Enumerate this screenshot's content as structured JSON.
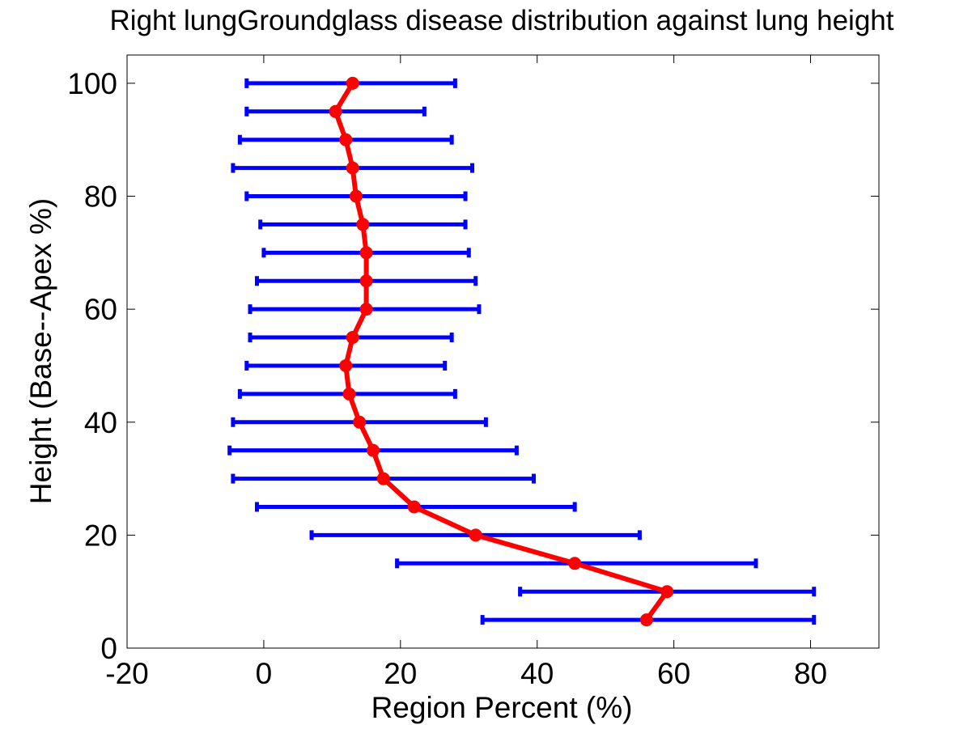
{
  "chart_data": {
    "type": "line",
    "title": "Right lungGroundglass disease distribution against lung height",
    "xlabel": "Region Percent (%)",
    "ylabel": "Height (Base--Apex %)",
    "xlim": [
      -20,
      90
    ],
    "ylim": [
      0,
      105
    ],
    "xticks": [
      -20,
      0,
      20,
      40,
      60,
      80
    ],
    "yticks": [
      0,
      20,
      40,
      60,
      80,
      100
    ],
    "xtick_labels": [
      "-20",
      "0",
      "20",
      "40",
      "60",
      "80"
    ],
    "ytick_labels": [
      "0",
      "20",
      "40",
      "60",
      "80",
      "100"
    ],
    "grid": false,
    "legend": "none",
    "orientation": "horizontal error bars",
    "colors": {
      "line": "#ff0000",
      "marker": "#ff0000",
      "error_bar": "#0000ff",
      "axes": "#000000"
    },
    "series": [
      {
        "y": [
          5,
          10,
          15,
          20,
          25,
          30,
          35,
          40,
          45,
          50,
          55,
          60,
          65,
          70,
          75,
          80,
          85,
          90,
          95,
          100
        ],
        "x": [
          56.0,
          59.0,
          45.5,
          31.0,
          22.0,
          17.5,
          16.0,
          14.0,
          12.5,
          12.0,
          13.0,
          15.0,
          15.0,
          15.0,
          14.5,
          13.5,
          13.0,
          12.0,
          10.5,
          13.0
        ],
        "x_lower": [
          32.0,
          37.5,
          19.5,
          7.0,
          -1.0,
          -4.5,
          -5.0,
          -4.5,
          -3.5,
          -2.5,
          -2.0,
          -2.0,
          -1.0,
          0.0,
          -0.5,
          -2.5,
          -4.5,
          -3.5,
          -2.5,
          -2.5
        ],
        "x_upper": [
          80.5,
          80.5,
          72.0,
          55.0,
          45.5,
          39.5,
          37.0,
          32.5,
          28.0,
          26.5,
          27.5,
          31.5,
          31.0,
          30.0,
          29.5,
          29.5,
          30.5,
          27.5,
          23.5,
          28.0
        ]
      }
    ]
  }
}
